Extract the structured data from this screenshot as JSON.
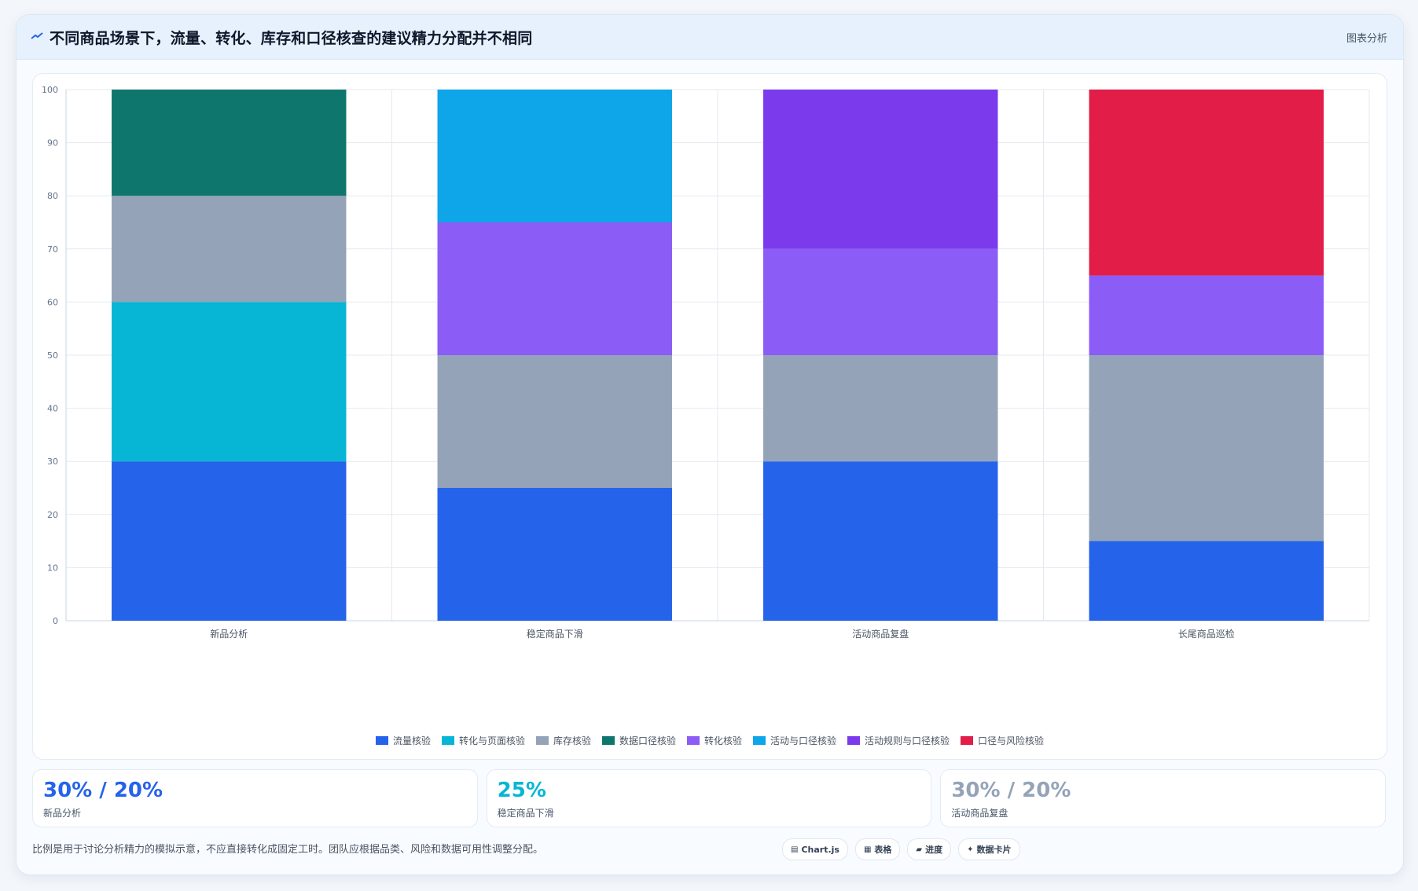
{
  "header": {
    "title": "不同商品场景下，流量、转化、库存和口径核查的建议精力分配并不相同",
    "tag": "图表分析",
    "logo_icon": "chart-line-icon"
  },
  "chart_data": {
    "type": "bar",
    "stacked": true,
    "categories": [
      "新品分析",
      "稳定商品下滑",
      "活动商品复盘",
      "长尾商品巡检"
    ],
    "ylim": [
      0,
      100
    ],
    "yticks": [
      0,
      10,
      20,
      30,
      40,
      50,
      60,
      70,
      80,
      90,
      100
    ],
    "grid": true,
    "legend_position": "bottom",
    "series": [
      {
        "name": "流量核验",
        "color": "#2563eb",
        "values": [
          30,
          25,
          30,
          15
        ]
      },
      {
        "name": "转化与页面核验",
        "color": "#06b6d4",
        "values": [
          30,
          0,
          0,
          0
        ]
      },
      {
        "name": "库存核验",
        "color": "#94a3b8",
        "values": [
          20,
          25,
          20,
          35
        ]
      },
      {
        "name": "数据口径核验",
        "color": "#0f766e",
        "values": [
          20,
          0,
          0,
          0
        ]
      },
      {
        "name": "转化核验",
        "color": "#8b5cf6",
        "values": [
          0,
          25,
          20,
          15
        ]
      },
      {
        "name": "活动与口径核验",
        "color": "#0ea5e9",
        "values": [
          0,
          25,
          0,
          0
        ]
      },
      {
        "name": "活动规则与口径核验",
        "color": "#7c3aed",
        "values": [
          0,
          0,
          30,
          0
        ]
      },
      {
        "name": "口径与风险核验",
        "color": "#e11d48",
        "values": [
          0,
          0,
          0,
          35
        ]
      }
    ]
  },
  "stats": [
    {
      "value": "30% / 20%",
      "label": "新品分析",
      "color": "#2563eb"
    },
    {
      "value": "25%",
      "label": "稳定商品下滑",
      "color": "#06b6d4"
    },
    {
      "value": "30% / 20%",
      "label": "活动商品复盘",
      "color": "#94a3b8"
    }
  ],
  "footnote": "比例是用于讨论分析精力的模拟示意，不应直接转化成固定工时。团队应根据品类、风险和数据可用性调整分配。",
  "chips": [
    {
      "label": "Chart.js",
      "icon": "chart-icon"
    },
    {
      "label": "表格",
      "icon": "table-icon"
    },
    {
      "label": "进度",
      "icon": "progress-icon"
    },
    {
      "label": "数据卡片",
      "icon": "sparkle-icon"
    }
  ]
}
